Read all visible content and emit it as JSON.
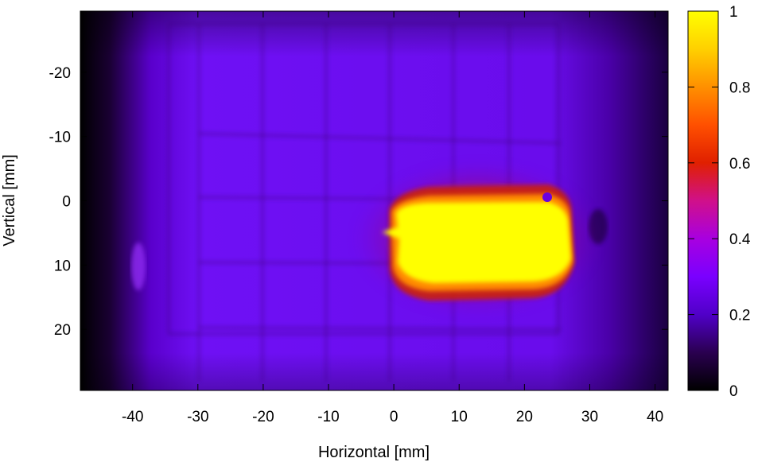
{
  "chart_data": {
    "type": "heatmap",
    "xlabel": "Horizontal [mm]",
    "ylabel": "Vertical [mm]",
    "xlim": [
      -48,
      42
    ],
    "ylim": [
      -29.5,
      29.5
    ],
    "y_inverted": true,
    "x_ticks": [
      -40,
      -30,
      -20,
      -10,
      0,
      10,
      20,
      30,
      40
    ],
    "y_ticks": [
      -20,
      -10,
      0,
      10,
      20
    ],
    "colorbar": {
      "min": 0,
      "max": 1,
      "ticks": [
        0,
        0.2,
        0.4,
        0.6,
        0.8,
        1
      ],
      "tick_labels": [
        "0",
        "0.2",
        "0.4",
        "0.6",
        "0.8",
        "1"
      ],
      "colormap": [
        "#000000",
        "#3a0070",
        "#6a00ff",
        "#a000e0",
        "#d00000",
        "#ff8000",
        "#ffe000",
        "#ffff00"
      ]
    },
    "features": [
      {
        "name": "background-low-intensity",
        "value": 0.2
      },
      {
        "name": "beam-core",
        "x_range": [
          -3,
          27
        ],
        "y_range": [
          0,
          13
        ],
        "value": 1.0
      },
      {
        "name": "beam-halo",
        "x_range": [
          -5,
          27
        ],
        "y_range": [
          -3,
          15
        ],
        "value": 0.6
      }
    ],
    "grid": false
  }
}
